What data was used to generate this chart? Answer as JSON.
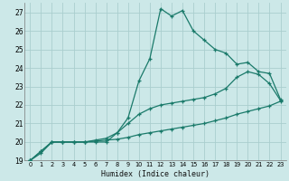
{
  "xlabel": "Humidex (Indice chaleur)",
  "bg_color": "#cce8e8",
  "grid_color": "#aacece",
  "line_color": "#1a7a6a",
  "xlim": [
    -0.5,
    23.5
  ],
  "ylim": [
    19,
    27.5
  ],
  "xticks": [
    0,
    1,
    2,
    3,
    4,
    5,
    6,
    7,
    8,
    9,
    10,
    11,
    12,
    13,
    14,
    15,
    16,
    17,
    18,
    19,
    20,
    21,
    22,
    23
  ],
  "yticks": [
    19,
    20,
    21,
    22,
    23,
    24,
    25,
    26,
    27
  ],
  "curve1_x": [
    0,
    1,
    2,
    3,
    4,
    5,
    6,
    7,
    8,
    9,
    10,
    11,
    12,
    13,
    14,
    15,
    16,
    17,
    18,
    19,
    20,
    21,
    22,
    23
  ],
  "curve1_y": [
    19.0,
    19.5,
    20.0,
    20.0,
    20.0,
    20.0,
    20.0,
    20.0,
    20.5,
    21.3,
    23.3,
    24.5,
    27.2,
    26.8,
    27.1,
    26.0,
    25.5,
    25.0,
    24.8,
    24.2,
    24.3,
    23.8,
    23.7,
    22.3
  ],
  "curve2_x": [
    0,
    1,
    2,
    3,
    4,
    5,
    6,
    7,
    8,
    9,
    10,
    11,
    12,
    13,
    14,
    15,
    16,
    17,
    18,
    19,
    20,
    21,
    22,
    23
  ],
  "curve2_y": [
    19.0,
    19.5,
    20.0,
    20.0,
    20.0,
    20.0,
    20.1,
    20.2,
    20.5,
    21.0,
    21.5,
    21.8,
    22.0,
    22.1,
    22.2,
    22.3,
    22.4,
    22.6,
    22.9,
    23.5,
    23.8,
    23.65,
    23.15,
    22.25
  ],
  "curve3_x": [
    0,
    1,
    2,
    3,
    4,
    5,
    6,
    7,
    8,
    9,
    10,
    11,
    12,
    13,
    14,
    15,
    16,
    17,
    18,
    19,
    20,
    21,
    22,
    23
  ],
  "curve3_y": [
    19.0,
    19.4,
    20.0,
    20.0,
    20.0,
    20.0,
    20.05,
    20.1,
    20.15,
    20.25,
    20.4,
    20.5,
    20.6,
    20.7,
    20.8,
    20.9,
    21.0,
    21.15,
    21.3,
    21.5,
    21.65,
    21.8,
    21.95,
    22.2
  ]
}
